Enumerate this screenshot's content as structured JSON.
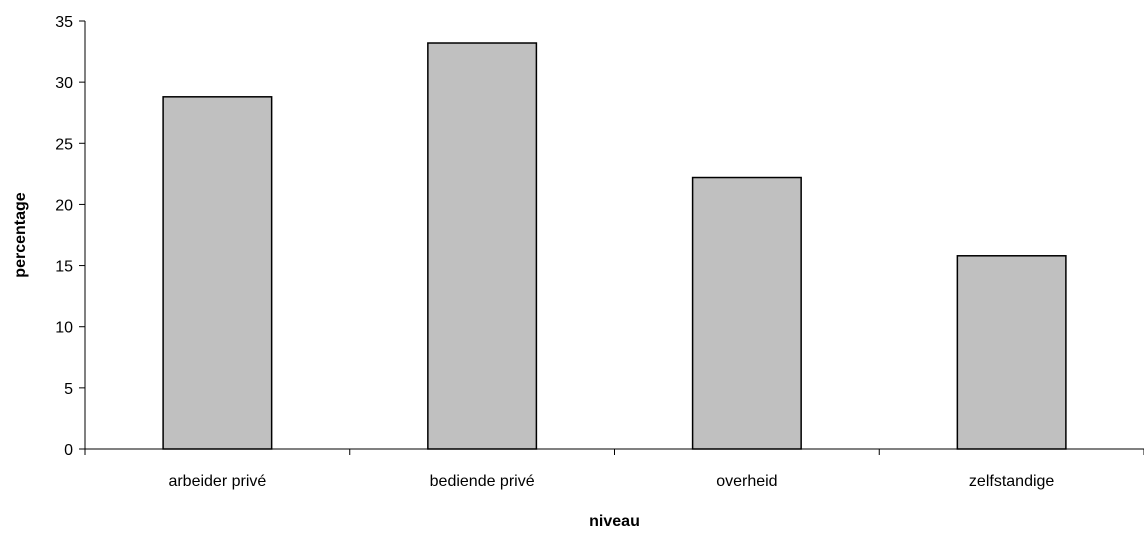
{
  "chart_data": {
    "type": "bar",
    "title": "",
    "xlabel": "niveau",
    "ylabel": "percentage",
    "categories": [
      "arbeider privé",
      "bediende privé",
      "overheid",
      "zelfstandige"
    ],
    "values": [
      28.8,
      33.2,
      22.2,
      15.8
    ],
    "ylim": [
      0,
      35
    ],
    "yticks": [
      0,
      5,
      10,
      15,
      20,
      25,
      30,
      35
    ],
    "grid": false,
    "legend": "none",
    "bar_color": "#c0c0c0",
    "bar_border_color": "#000000"
  }
}
